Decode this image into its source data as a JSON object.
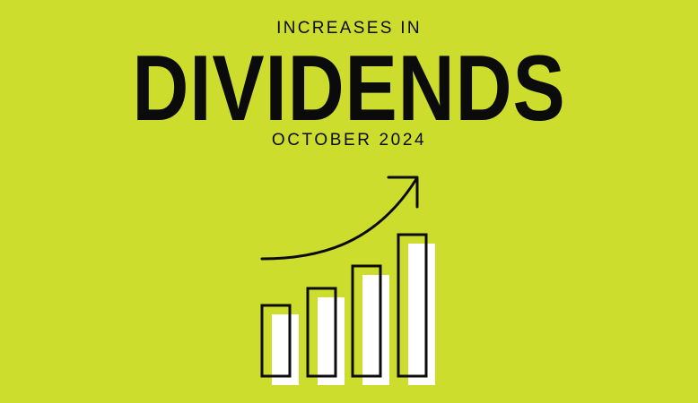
{
  "banner": {
    "kicker": "INCREASES IN",
    "headline": "DIVIDENDS",
    "date": "OCTOBER 2024"
  },
  "colors": {
    "background": "#cddd2d",
    "text": "#0b0b0b",
    "bar_fill": "#ffffff"
  },
  "illustration": {
    "icon": "growth-bar-chart-with-up-arrow-icon",
    "relative_bar_heights": [
      0.5,
      0.62,
      0.78,
      1.0
    ]
  }
}
